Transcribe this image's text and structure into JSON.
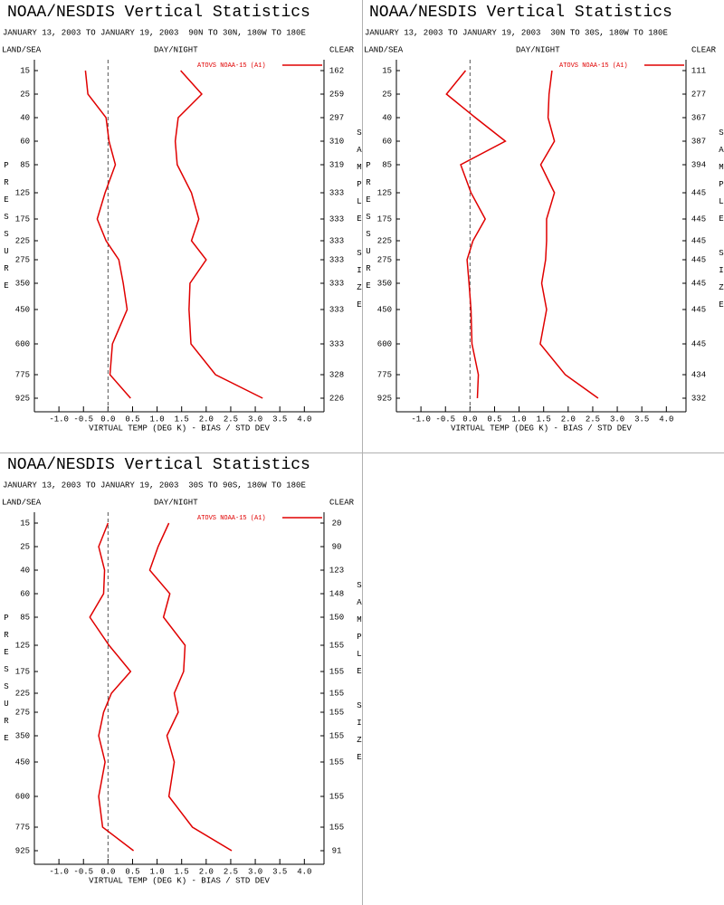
{
  "chart_data": [
    {
      "type": "line",
      "title": "NOAA/NESDIS Vertical Statistics",
      "subtitle": "JANUARY 13, 2003 TO JANUARY 19, 2003  90N TO 30N, 180W TO 180E",
      "left_label": "LAND/SEA",
      "center_label": "DAY/NIGHT",
      "right_label": "CLEAR",
      "ylabel": "PRESSURE",
      "y2label": "SAMPLE SIZE",
      "xlabel": "VIRTUAL TEMP (DEG K) - BIAS / STD DEV",
      "legend": "ATOVS NOAA-15 (A1)",
      "categories": [
        "15",
        "25",
        "40",
        "60",
        "85",
        "125",
        "175",
        "225",
        "275",
        "350",
        "450",
        "600",
        "775",
        "925"
      ],
      "sample_size": [
        "162",
        "259",
        "297",
        "310",
        "319",
        "333",
        "333",
        "333",
        "333",
        "333",
        "333",
        "333",
        "328",
        "226"
      ],
      "series": [
        {
          "color": "#e00000",
          "values": [
            -0.46,
            -0.41,
            -0.04,
            0.02,
            0.15,
            -0.06,
            -0.22,
            -0.04,
            0.22,
            0.31,
            0.39,
            0.09,
            0.04,
            0.46
          ]
        },
        {
          "color": "#e00000",
          "values": [
            1.48,
            1.91,
            1.43,
            1.37,
            1.41,
            1.7,
            1.85,
            1.7,
            2.0,
            1.67,
            1.65,
            1.69,
            2.19,
            3.15
          ]
        }
      ],
      "xlim": [
        -1.5,
        4.4
      ],
      "xticks": [
        {
          "value": -1,
          "label": "-1.0"
        },
        {
          "value": -0.5,
          "label": "-0.5"
        },
        {
          "value": 0,
          "label": "0.0"
        },
        {
          "value": 0.5,
          "label": "0.5"
        },
        {
          "value": 1,
          "label": "1.0"
        },
        {
          "value": 1.5,
          "label": "1.5"
        },
        {
          "value": 2,
          "label": "2.0"
        },
        {
          "value": 2.5,
          "label": "2.5"
        },
        {
          "value": 3,
          "label": "3.0"
        },
        {
          "value": 3.5,
          "label": "3.5"
        },
        {
          "value": 4,
          "label": "4.0"
        }
      ]
    },
    {
      "type": "line",
      "title": "NOAA/NESDIS Vertical Statistics",
      "subtitle": "JANUARY 13, 2003 TO JANUARY 19, 2003  30N TO 30S, 180W TO 180E",
      "left_label": "LAND/SEA",
      "center_label": "DAY/NIGHT",
      "right_label": "CLEAR",
      "ylabel": "PRESSURE",
      "y2label": "SAMPLE SIZE",
      "xlabel": "VIRTUAL TEMP (DEG K) - BIAS / STD DEV",
      "legend": "ATOVS NOAA-15 (A1)",
      "categories": [
        "15",
        "25",
        "40",
        "60",
        "85",
        "125",
        "175",
        "225",
        "275",
        "350",
        "450",
        "600",
        "775",
        "925"
      ],
      "sample_size": [
        "111",
        "277",
        "367",
        "387",
        "394",
        "445",
        "445",
        "445",
        "445",
        "445",
        "445",
        "445",
        "434",
        "332"
      ],
      "series": [
        {
          "color": "#e00000",
          "values": [
            -0.09,
            -0.48,
            0.11,
            0.72,
            -0.19,
            0.02,
            0.31,
            0.06,
            -0.06,
            -0.02,
            0.02,
            0.04,
            0.17,
            0.15
          ]
        },
        {
          "color": "#e00000",
          "values": [
            1.67,
            1.61,
            1.59,
            1.72,
            1.44,
            1.72,
            1.56,
            1.56,
            1.54,
            1.46,
            1.56,
            1.43,
            1.94,
            2.61
          ]
        }
      ],
      "xlim": [
        -1.5,
        4.4
      ],
      "xticks": [
        {
          "value": -1,
          "label": "-1.0"
        },
        {
          "value": -0.5,
          "label": "-0.5"
        },
        {
          "value": 0,
          "label": "0.0"
        },
        {
          "value": 0.5,
          "label": "0.5"
        },
        {
          "value": 1,
          "label": "1.0"
        },
        {
          "value": 1.5,
          "label": "1.5"
        },
        {
          "value": 2,
          "label": "2.0"
        },
        {
          "value": 2.5,
          "label": "2.5"
        },
        {
          "value": 3,
          "label": "3.0"
        },
        {
          "value": 3.5,
          "label": "3.5"
        },
        {
          "value": 4,
          "label": "4.0"
        }
      ]
    },
    {
      "type": "line",
      "title": "NOAA/NESDIS Vertical Statistics",
      "subtitle": "JANUARY 13, 2003 TO JANUARY 19, 2003  30S TO 90S, 180W TO 180E",
      "left_label": "LAND/SEA",
      "center_label": "DAY/NIGHT",
      "right_label": "CLEAR",
      "ylabel": "PRESSURE",
      "y2label": "SAMPLE SIZE",
      "xlabel": "VIRTUAL TEMP (DEG K) - BIAS / STD DEV",
      "legend": "ATOVS NOAA-15 (A1)",
      "categories": [
        "15",
        "25",
        "40",
        "60",
        "85",
        "125",
        "175",
        "225",
        "275",
        "350",
        "450",
        "600",
        "775",
        "925"
      ],
      "sample_size": [
        "20",
        "90",
        "123",
        "148",
        "150",
        "155",
        "155",
        "155",
        "155",
        "155",
        "155",
        "155",
        "155",
        "91"
      ],
      "series": [
        {
          "color": "#e00000",
          "values": [
            0.0,
            -0.19,
            -0.07,
            -0.09,
            -0.37,
            0.02,
            0.46,
            0.07,
            -0.09,
            -0.19,
            -0.06,
            -0.19,
            -0.11,
            0.52
          ]
        },
        {
          "color": "#e00000",
          "values": [
            1.24,
            1.02,
            0.85,
            1.26,
            1.13,
            1.57,
            1.54,
            1.35,
            1.43,
            1.2,
            1.35,
            1.24,
            1.72,
            2.52
          ]
        }
      ],
      "xlim": [
        -1.5,
        4.4
      ],
      "xticks": [
        {
          "value": -1,
          "label": "-1.0"
        },
        {
          "value": -0.5,
          "label": "-0.5"
        },
        {
          "value": 0,
          "label": "0.0"
        },
        {
          "value": 0.5,
          "label": "0.5"
        },
        {
          "value": 1,
          "label": "1.0"
        },
        {
          "value": 1.5,
          "label": "1.5"
        },
        {
          "value": 2,
          "label": "2.0"
        },
        {
          "value": 2.5,
          "label": "2.5"
        },
        {
          "value": 3,
          "label": "3.0"
        },
        {
          "value": 3.5,
          "label": "3.5"
        },
        {
          "value": 4,
          "label": "4.0"
        }
      ]
    }
  ]
}
